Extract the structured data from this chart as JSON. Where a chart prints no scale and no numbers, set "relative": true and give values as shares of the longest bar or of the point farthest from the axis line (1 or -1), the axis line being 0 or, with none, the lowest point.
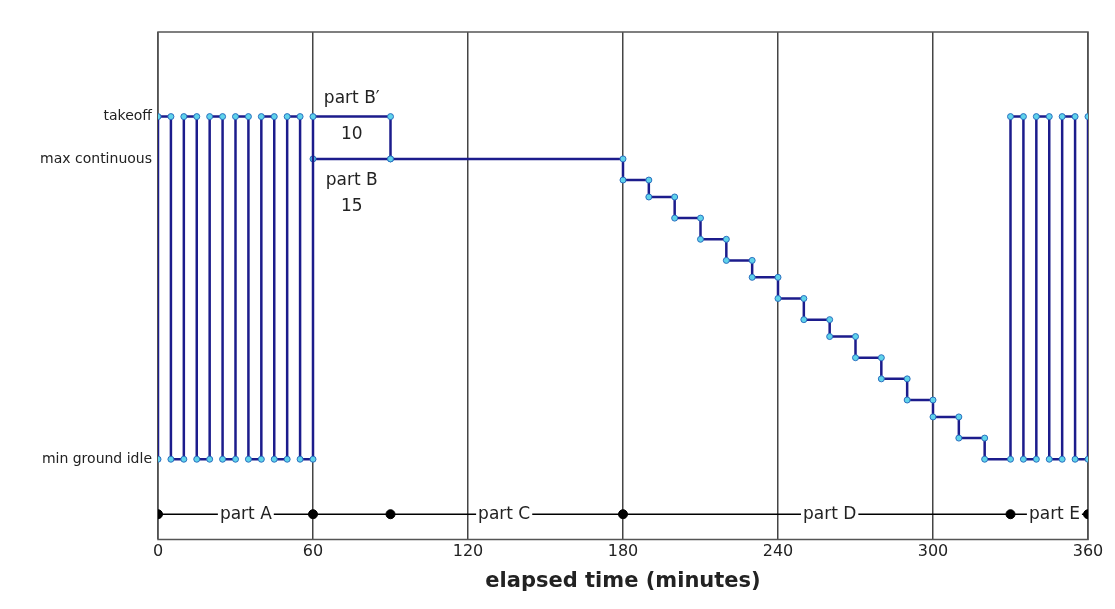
{
  "chart_data": {
    "type": "line",
    "relative": true,
    "xlabel": "elapsed time (minutes)",
    "xlim": [
      0,
      360
    ],
    "xticks": [
      0,
      60,
      120,
      180,
      240,
      300,
      360
    ],
    "grid": "x",
    "legend": false,
    "line_style": "solid",
    "series": [
      {
        "color": "#1c1c8c",
        "marker": "circle",
        "x": [
          0,
          0,
          5,
          5,
          10,
          10,
          15,
          15,
          20,
          20,
          25,
          25,
          30,
          30,
          35,
          35,
          40,
          40,
          45,
          45,
          50,
          50,
          55,
          55,
          60,
          60,
          90,
          90,
          180,
          180,
          190,
          190,
          200,
          200,
          210,
          210,
          220,
          220,
          230,
          230,
          240,
          240,
          250,
          250,
          260,
          260,
          270,
          270,
          280,
          280,
          290,
          290,
          300,
          300,
          310,
          310,
          320,
          320,
          330,
          330,
          335,
          335,
          340,
          340,
          345,
          345,
          350,
          350,
          355,
          355,
          360,
          360
        ],
        "values": [
          0.19,
          1,
          1,
          0.19,
          0.19,
          1,
          1,
          0.19,
          0.19,
          1,
          1,
          0.19,
          0.19,
          1,
          1,
          0.19,
          0.19,
          1,
          1,
          0.19,
          0.19,
          1,
          1,
          0.19,
          0.19,
          1,
          1,
          0.9,
          0.9,
          0.85,
          0.85,
          0.81,
          0.81,
          0.76,
          0.76,
          0.71,
          0.71,
          0.66,
          0.66,
          0.62,
          0.62,
          0.57,
          0.57,
          0.52,
          0.52,
          0.48,
          0.48,
          0.43,
          0.43,
          0.38,
          0.38,
          0.33,
          0.33,
          0.29,
          0.29,
          0.24,
          0.24,
          0.19,
          0.19,
          1,
          1,
          0.19,
          0.19,
          1,
          1,
          0.19,
          0.19,
          1,
          1,
          0.19,
          0.19,
          1
        ]
      },
      {
        "color": "#1c1c8c",
        "marker": "circle",
        "x": [
          60,
          90
        ],
        "values": [
          0.9,
          0.9
        ]
      },
      {
        "color": "#000000",
        "marker": "circle",
        "x": [
          0,
          60,
          90,
          180,
          330,
          360
        ],
        "values": [
          0.06,
          0.06,
          0.06,
          0.06,
          0.06,
          0.06
        ]
      }
    ],
    "annotations": [
      {
        "text": "takeoff",
        "x": 0,
        "y": 1
      },
      {
        "text": "max continuous",
        "x": 0,
        "y": 0.9
      },
      {
        "text": "min ground idle",
        "x": 0,
        "y": 0.19
      },
      {
        "text": "part B′",
        "x": 75,
        "y": 1
      },
      {
        "text": "10",
        "x": 75,
        "y": 1
      },
      {
        "text": "part B",
        "x": 75,
        "y": 0.9
      },
      {
        "text": "15",
        "x": 75,
        "y": 0.9
      },
      {
        "text": "part A",
        "x": 34,
        "y": 0.06
      },
      {
        "text": "part C",
        "x": 134,
        "y": 0.06
      },
      {
        "text": "part D",
        "x": 260,
        "y": 0.06
      },
      {
        "text": "part E",
        "x": 347,
        "y": 0.06
      }
    ]
  }
}
